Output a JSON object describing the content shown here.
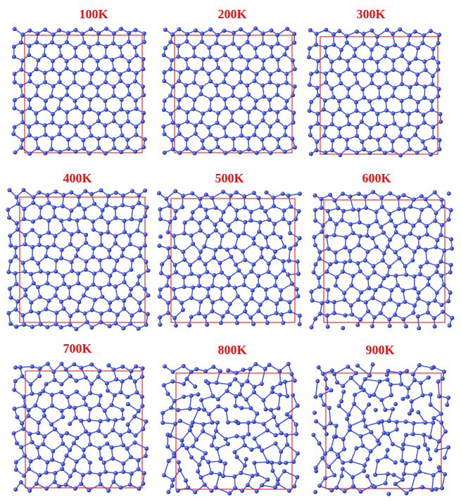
{
  "panels": [
    {
      "label": "100K"
    },
    {
      "label": "200K"
    },
    {
      "label": "300K"
    },
    {
      "label": "400K"
    },
    {
      "label": "500K"
    },
    {
      "label": "600K"
    },
    {
      "label": "700K"
    },
    {
      "label": "800K"
    },
    {
      "label": "900K"
    }
  ]
}
